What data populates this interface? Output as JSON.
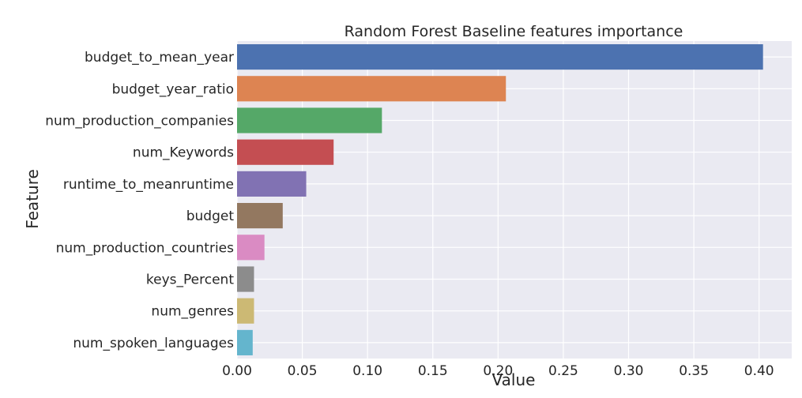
{
  "chart_data": {
    "type": "bar",
    "orientation": "horizontal",
    "title": "Random Forest Baseline features importance",
    "xlabel": "Value",
    "ylabel": "Feature",
    "xlim": [
      0,
      0.425
    ],
    "xticks": [
      "0.00",
      "0.05",
      "0.10",
      "0.15",
      "0.20",
      "0.25",
      "0.30",
      "0.35",
      "0.40"
    ],
    "grid": true,
    "categories": [
      "budget_to_mean_year",
      "budget_year_ratio",
      "num_production_companies",
      "num_Keywords",
      "runtime_to_meanruntime",
      "budget",
      "num_production_countries",
      "keys_Percent",
      "num_genres",
      "num_spoken_languages"
    ],
    "values": [
      0.403,
      0.206,
      0.111,
      0.074,
      0.053,
      0.035,
      0.021,
      0.013,
      0.013,
      0.012
    ],
    "colors": [
      "#4c72b0",
      "#dd8452",
      "#55a868",
      "#c44e52",
      "#8172b3",
      "#937860",
      "#da8bc3",
      "#8c8c8c",
      "#ccb974",
      "#64b5cd"
    ]
  }
}
